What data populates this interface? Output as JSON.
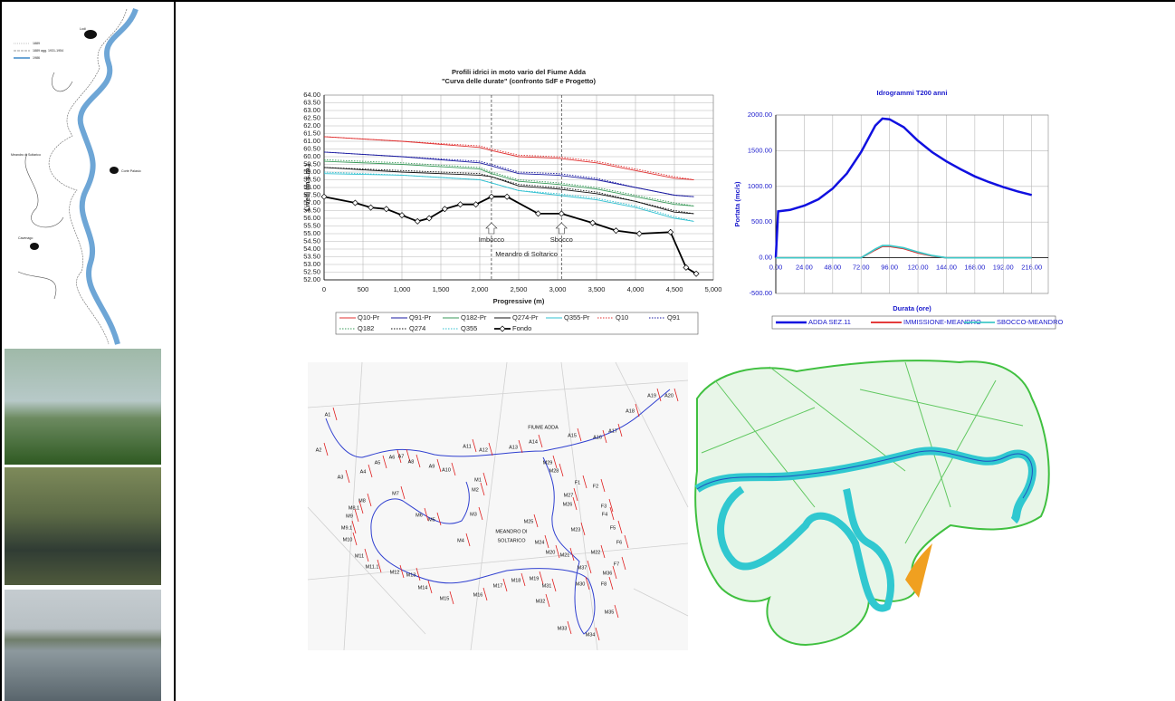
{
  "sidebar": {
    "map_labels": [
      "1889",
      "1889 agg. 1931-1954",
      "1986",
      "Lodi",
      "Meandro di Soltarico",
      "Corte Palasio",
      "Cavenago"
    ]
  },
  "chart_data": [
    {
      "type": "line",
      "title": "Profili idrici in moto vario del Fiume Adda",
      "subtitle": "\"Curva delle durate\" (confronto SdF e Progetto)",
      "x_label": "Progressive (m)",
      "y_label": "Livelli (m s.m.)",
      "xlim": [
        0,
        5000
      ],
      "ylim": [
        52,
        64
      ],
      "xticks": [
        0,
        500,
        {
          "value": 1000,
          "label": "1,000"
        },
        {
          "value": 1500,
          "label": "1,500"
        },
        {
          "value": 2000,
          "label": "2,000"
        },
        {
          "value": 2500,
          "label": "2,500"
        },
        {
          "value": 3000,
          "label": "3,000"
        },
        {
          "value": 3500,
          "label": "3,500"
        },
        {
          "value": 4000,
          "label": "4,000"
        },
        {
          "value": 4500,
          "label": "4,500"
        },
        {
          "value": 5000,
          "label": "5,000"
        }
      ],
      "yticks": [
        {
          "value": 52,
          "label": "52.00"
        },
        {
          "value": 52.5,
          "label": "52.50"
        },
        {
          "value": 53,
          "label": "53.00"
        },
        {
          "value": 53.5,
          "label": "53.50"
        },
        {
          "value": 54,
          "label": "54.00"
        },
        {
          "value": 54.5,
          "label": "54.50"
        },
        {
          "value": 55,
          "label": "55.00"
        },
        {
          "value": 55.5,
          "label": "55.50"
        },
        {
          "value": 56,
          "label": "56.00"
        },
        {
          "value": 56.5,
          "label": "56.50"
        },
        {
          "value": 57,
          "label": "57.00"
        },
        {
          "value": 57.5,
          "label": "57.50"
        },
        {
          "value": 58,
          "label": "58.00"
        },
        {
          "value": 58.5,
          "label": "58.50"
        },
        {
          "value": 59,
          "label": "59.00"
        },
        {
          "value": 59.5,
          "label": "59.50"
        },
        {
          "value": 60,
          "label": "60.00"
        },
        {
          "value": 60.5,
          "label": "60.50"
        },
        {
          "value": 61,
          "label": "61.00"
        },
        {
          "value": 61.5,
          "label": "61.50"
        },
        {
          "value": 62,
          "label": "62.00"
        },
        {
          "value": 62.5,
          "label": "62.50"
        },
        {
          "value": 63,
          "label": "63.00"
        },
        {
          "value": 63.5,
          "label": "63.50"
        },
        {
          "value": 64,
          "label": "64.00"
        }
      ],
      "grid": true,
      "x": [
        0,
        1000,
        2000,
        2150,
        2500,
        3000,
        3500,
        4000,
        4500,
        4750
      ],
      "series": [
        {
          "name": "Q10-Pr",
          "color": "#e03030",
          "style": "solid",
          "values": [
            61.3,
            61.0,
            60.6,
            60.4,
            60.0,
            59.9,
            59.6,
            59.1,
            58.6,
            58.5
          ]
        },
        {
          "name": "Q91-Pr",
          "color": "#1a1aa0",
          "style": "solid",
          "values": [
            60.3,
            60.0,
            59.6,
            59.4,
            58.9,
            58.8,
            58.5,
            58.0,
            57.5,
            57.4
          ]
        },
        {
          "name": "Q182-Pr",
          "color": "#3a9a5a",
          "style": "solid",
          "values": [
            59.7,
            59.5,
            59.2,
            58.9,
            58.4,
            58.2,
            57.9,
            57.4,
            56.9,
            56.8
          ]
        },
        {
          "name": "Q274-Pr",
          "color": "#111111",
          "style": "solid",
          "values": [
            59.3,
            59.0,
            58.8,
            58.7,
            58.1,
            57.9,
            57.6,
            57.1,
            56.4,
            56.3
          ]
        },
        {
          "name": "Q355-Pr",
          "color": "#30c0d0",
          "style": "solid",
          "values": [
            58.9,
            58.8,
            58.5,
            58.3,
            57.8,
            57.5,
            57.2,
            56.7,
            56.0,
            55.8
          ]
        },
        {
          "name": "Q10",
          "color": "#e03030",
          "style": "dotted",
          "values": [
            61.3,
            61.0,
            60.7,
            60.5,
            60.1,
            60.0,
            59.7,
            59.2,
            58.7,
            58.5
          ]
        },
        {
          "name": "Q91",
          "color": "#1a1aa0",
          "style": "dotted",
          "values": [
            60.3,
            60.0,
            59.7,
            59.5,
            59.0,
            58.9,
            58.6,
            58.0,
            57.5,
            57.4
          ]
        },
        {
          "name": "Q182",
          "color": "#3a9a5a",
          "style": "dotted",
          "values": [
            59.8,
            59.6,
            59.3,
            59.0,
            58.5,
            58.3,
            58.0,
            57.5,
            57.0,
            56.8
          ]
        },
        {
          "name": "Q274",
          "color": "#111111",
          "style": "dotted",
          "values": [
            59.3,
            59.1,
            58.9,
            58.7,
            58.2,
            58.0,
            57.7,
            57.1,
            56.5,
            56.3
          ]
        },
        {
          "name": "Q355",
          "color": "#30c0d0",
          "style": "dotted",
          "values": [
            59.0,
            58.8,
            58.5,
            58.3,
            57.8,
            57.6,
            57.3,
            56.8,
            56.1,
            55.8
          ]
        },
        {
          "name": "Fondo",
          "color": "#000000",
          "style": "solid",
          "marker": "diamond",
          "x": [
            0,
            400,
            600,
            800,
            1000,
            1200,
            1350,
            1550,
            1750,
            1950,
            2150,
            2350,
            2750,
            3050,
            3450,
            3750,
            4050,
            4450,
            4650,
            4780
          ],
          "values": [
            57.4,
            57.0,
            56.7,
            56.6,
            56.2,
            55.8,
            56.0,
            56.6,
            56.9,
            56.9,
            57.4,
            57.4,
            56.3,
            56.3,
            55.7,
            55.2,
            55.0,
            55.1,
            52.8,
            52.4
          ]
        }
      ],
      "markers": [
        {
          "label": "Imbocco",
          "x": 2150
        },
        {
          "label": "Sbocco",
          "x": 3050
        }
      ],
      "annotation": "Meandro di Soltarico"
    },
    {
      "type": "line",
      "title": "Idrogrammi T200 anni",
      "x_label": "Durata (ore)",
      "y_label": "Portata (mc/s)",
      "xlim": [
        0,
        230
      ],
      "ylim": [
        -500,
        2000
      ],
      "xticks": [
        {
          "value": 0,
          "label": "0.00"
        },
        {
          "value": 24,
          "label": "24.00"
        },
        {
          "value": 48,
          "label": "48.00"
        },
        {
          "value": 72,
          "label": "72.00"
        },
        {
          "value": 96,
          "label": "96.00"
        },
        {
          "value": 120,
          "label": "120.00"
        },
        {
          "value": 144,
          "label": "144.00"
        },
        {
          "value": 168,
          "label": "168.00"
        },
        {
          "value": 192,
          "label": "192.00"
        },
        {
          "value": 216,
          "label": "216.00"
        }
      ],
      "yticks": [
        {
          "value": -500,
          "label": "-500.00"
        },
        {
          "value": 0,
          "label": "0.00"
        },
        {
          "value": 500,
          "label": "500.00"
        },
        {
          "value": 1000,
          "label": "1000.00"
        },
        {
          "value": 1500,
          "label": "1500.00"
        },
        {
          "value": 2000,
          "label": "2000.00"
        }
      ],
      "grid": true,
      "x": [
        0,
        2,
        12,
        24,
        36,
        48,
        60,
        72,
        84,
        90,
        96,
        108,
        120,
        132,
        144,
        156,
        168,
        180,
        192,
        204,
        216
      ],
      "series": [
        {
          "name": "ADDA  SEZ.11",
          "color": "#1010e0",
          "width": 2.5,
          "values": [
            0,
            650,
            670,
            730,
            820,
            970,
            1180,
            1480,
            1850,
            1950,
            1940,
            1830,
            1640,
            1480,
            1350,
            1240,
            1140,
            1060,
            990,
            930,
            880
          ]
        },
        {
          "name": "IMMISSIONE-MEANDRO",
          "color": "#e02020",
          "width": 1.8,
          "values": [
            0,
            0,
            0,
            0,
            0,
            0,
            0,
            0,
            110,
            160,
            160,
            130,
            70,
            25,
            0,
            0,
            0,
            0,
            0,
            0,
            0
          ]
        },
        {
          "name": "SBOCCO-MEANDRO",
          "color": "#40c8c8",
          "width": 1.8,
          "values": [
            0,
            0,
            0,
            0,
            0,
            0,
            0,
            0,
            120,
            170,
            170,
            140,
            80,
            30,
            0,
            0,
            0,
            0,
            0,
            0,
            0
          ]
        }
      ]
    }
  ],
  "section_map": {
    "river_label": "FIUME ADDA",
    "meander_label": [
      "MEANDRO DI",
      "SOLTARICO"
    ],
    "labels": [
      "A1",
      "A2",
      "A3",
      "A4",
      "A5",
      "A6",
      "A7",
      "A8",
      "A9",
      "A10",
      "A11",
      "A12",
      "A13",
      "A14",
      "A15",
      "A16",
      "A17",
      "A18",
      "A19",
      "A20",
      "M1",
      "M2",
      "M3",
      "M4",
      "M5",
      "M6",
      "M7",
      "M8",
      "M8.1",
      "M9",
      "M9.1",
      "M10",
      "M11",
      "M11.1",
      "M12",
      "M13",
      "M14",
      "M15",
      "M16",
      "M17",
      "M18",
      "M19",
      "M20",
      "M21",
      "M22",
      "M23",
      "M24",
      "M25",
      "M26",
      "M27",
      "M28",
      "M29",
      "M30",
      "M31",
      "M32",
      "M33",
      "M34",
      "M35",
      "M36",
      "M37",
      "F1",
      "F2",
      "F3",
      "F4",
      "F5",
      "F6",
      "F7",
      "F8"
    ]
  }
}
